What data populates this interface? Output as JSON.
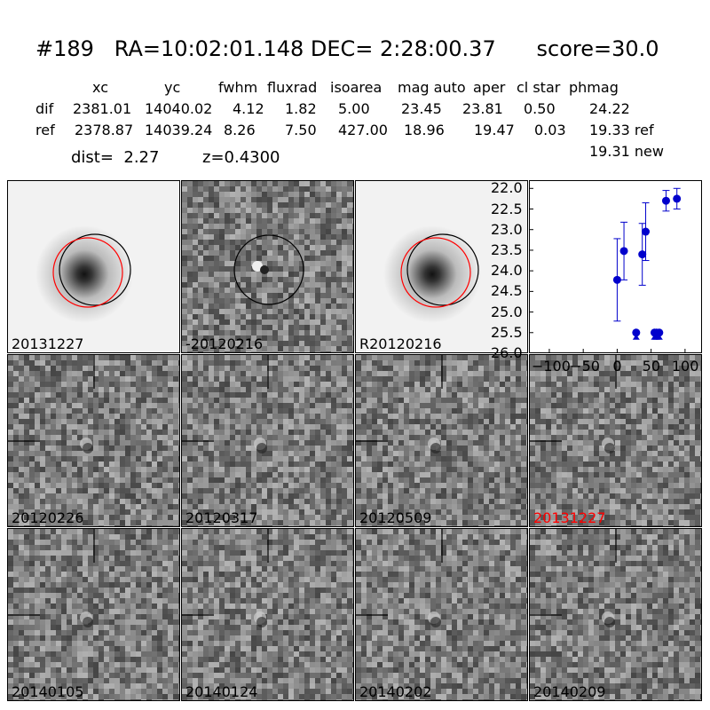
{
  "header": {
    "title": "#189   RA=10:02:01.148 DEC= 2:28:00.37      score=30.0",
    "columns": [
      "xc",
      "yc",
      "fwhm",
      "fluxrad",
      "isoarea",
      "mag auto",
      "aper",
      "cl star",
      "phmag"
    ],
    "rows": [
      {
        "label": "dif",
        "values": [
          "2381.01",
          "14040.02",
          "4.12",
          "1.82",
          "5.00",
          "23.45",
          "23.81",
          "0.50",
          "24.22"
        ]
      },
      {
        "label": "ref",
        "values": [
          "2378.87",
          "14039.24",
          "8.26",
          "7.50",
          "427.00",
          "18.96",
          "19.47",
          "0.03",
          "19.33 ref"
        ]
      }
    ],
    "phmag_new": "19.31 new",
    "dist": "dist=  2.27",
    "z": "z=0.4300"
  },
  "panels": [
    {
      "label": "20131227",
      "kind": "galaxy"
    },
    {
      "label": "-20120216",
      "kind": "diff_circle"
    },
    {
      "label": "R20120216",
      "kind": "galaxy"
    },
    {
      "label": "20120226",
      "kind": "noise"
    },
    {
      "label": "20120317",
      "kind": "noise"
    },
    {
      "label": "20120509",
      "kind": "noise"
    },
    {
      "label": "20131227",
      "kind": "noise",
      "highlight": true
    },
    {
      "label": "20140105",
      "kind": "noise"
    },
    {
      "label": "20140124",
      "kind": "noise"
    },
    {
      "label": "20140202",
      "kind": "noise"
    },
    {
      "label": "20140209",
      "kind": "noise"
    }
  ],
  "chart_data": {
    "type": "scatter",
    "xlim": [
      -130,
      125
    ],
    "ylim": [
      26.0,
      21.8
    ],
    "yticks": [
      "22.0",
      "22.5",
      "23.0",
      "23.5",
      "24.0",
      "24.5",
      "25.0",
      "25.5",
      "26.0"
    ],
    "xticks": [
      "−100",
      "−50",
      "0",
      "50",
      "100"
    ],
    "points": [
      {
        "x": 0,
        "y": 24.22,
        "err": 1.0
      },
      {
        "x": 10,
        "y": 23.52,
        "err": 0.7
      },
      {
        "x": 28,
        "y": 25.5,
        "err": 0,
        "limit": true
      },
      {
        "x": 37,
        "y": 23.6,
        "err": 0.75
      },
      {
        "x": 42,
        "y": 23.05,
        "err": 0.7
      },
      {
        "x": 55,
        "y": 25.5,
        "err": 0,
        "limit": true
      },
      {
        "x": 58,
        "y": 25.5,
        "err": 0,
        "limit": true
      },
      {
        "x": 62,
        "y": 25.5,
        "err": 0,
        "limit": true
      },
      {
        "x": 72,
        "y": 22.3,
        "err": 0.25
      },
      {
        "x": 88,
        "y": 22.25,
        "err": 0.25
      }
    ],
    "color": "#0000cc"
  }
}
